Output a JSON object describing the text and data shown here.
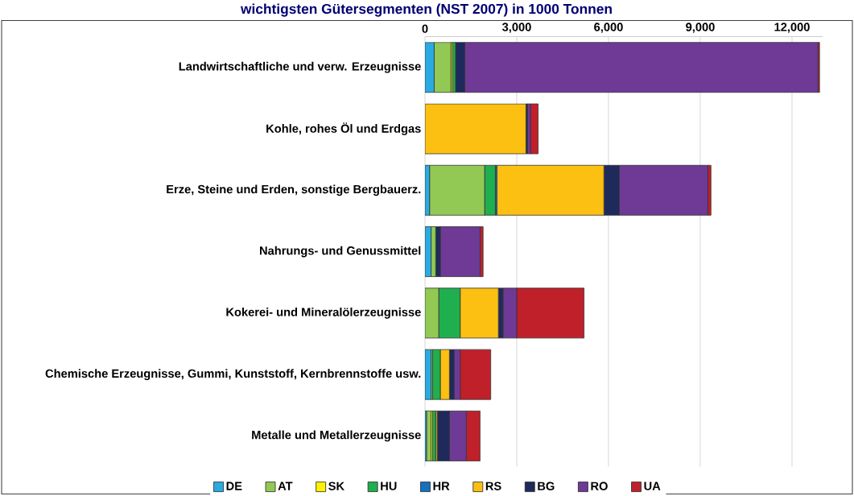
{
  "chart_data": {
    "type": "bar",
    "orientation": "horizontal",
    "stacked": true,
    "title": "wichtigsten Gütersegmenten (NST 2007) in 1000 Tonnen",
    "categories": [
      "Landwirtschaftliche und verw. Erzeugnisse",
      "Kohle, rohes Öl und Erdgas",
      "Erze, Steine und Erden, sonstige Bergbauerz.",
      "Nahrungs- und Genussmittel",
      "Kokerei- und Mineralölerzeugnisse",
      "Chemische Erzeugnisse, Gummi, Kunststoff, Kernbrennstoffe usw.",
      "Metalle und Metallerzeugnisse"
    ],
    "series": [
      {
        "name": "DE",
        "color": "#29abe2",
        "values": [
          300,
          0,
          150,
          200,
          0,
          200,
          50
        ]
      },
      {
        "name": "AT",
        "color": "#92c954",
        "values": [
          550,
          0,
          1800,
          150,
          450,
          50,
          150
        ]
      },
      {
        "name": "SK",
        "color": "#fff200",
        "values": [
          50,
          0,
          0,
          0,
          0,
          0,
          50
        ]
      },
      {
        "name": "HU",
        "color": "#1faf4f",
        "values": [
          100,
          0,
          350,
          0,
          700,
          250,
          100
        ]
      },
      {
        "name": "HR",
        "color": "#1570be",
        "values": [
          0,
          0,
          50,
          0,
          0,
          0,
          0
        ]
      },
      {
        "name": "RS",
        "color": "#fbc012",
        "values": [
          0,
          3300,
          3500,
          0,
          1250,
          300,
          50
        ]
      },
      {
        "name": "BG",
        "color": "#1f2a5c",
        "values": [
          300,
          50,
          500,
          150,
          150,
          150,
          400
        ]
      },
      {
        "name": "RO",
        "color": "#6f3996",
        "values": [
          11550,
          100,
          2900,
          1300,
          450,
          200,
          550
        ]
      },
      {
        "name": "UA",
        "color": "#c0202a",
        "values": [
          50,
          250,
          100,
          100,
          2200,
          1000,
          450
        ]
      }
    ],
    "xlim": [
      0,
      13000
    ],
    "xticks": [
      {
        "value": 0,
        "label": "0"
      },
      {
        "value": 3000,
        "label": "3,000"
      },
      {
        "value": 6000,
        "label": "6,000"
      },
      {
        "value": 9000,
        "label": "9,000"
      },
      {
        "value": 12000,
        "label": "12,000"
      }
    ],
    "grid": "x",
    "legend": "bottom"
  }
}
